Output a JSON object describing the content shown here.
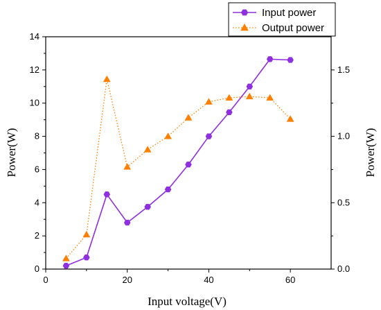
{
  "chart_data": {
    "type": "line",
    "xlabel": "Input voltage(V)",
    "ylabel_left": "Power(W)",
    "ylabel_right": "Power(W)",
    "xlim": [
      0,
      70
    ],
    "ylim_left": [
      0,
      14
    ],
    "ylim_right": [
      0,
      1.75
    ],
    "x_ticks": [
      "0",
      "20",
      "40",
      "60"
    ],
    "y_left_ticks": [
      "0",
      "2",
      "4",
      "6",
      "8",
      "10",
      "12",
      "14"
    ],
    "y_right_ticks": [
      "0.0",
      "0.5",
      "1.0",
      "1.5"
    ],
    "series": [
      {
        "name": "Input power",
        "axis": "left",
        "color": "#8e2fe0",
        "marker": "hexagon",
        "line_style": "solid",
        "x": [
          5,
          10,
          15,
          20,
          25,
          30,
          35,
          40,
          45,
          50,
          55,
          60
        ],
        "y": [
          0.2,
          0.7,
          4.5,
          2.8,
          3.75,
          4.8,
          6.3,
          8.0,
          9.45,
          11.0,
          12.65,
          12.6
        ]
      },
      {
        "name": "Output power",
        "axis": "right",
        "color": "#ff7f00",
        "marker": "triangle",
        "line_style": "dotted",
        "x": [
          5,
          10,
          15,
          20,
          25,
          30,
          35,
          40,
          45,
          50,
          55,
          60
        ],
        "y": [
          0.08,
          0.26,
          1.43,
          0.77,
          0.9,
          1.0,
          1.14,
          1.26,
          1.29,
          1.3,
          1.29,
          1.13
        ]
      }
    ],
    "legend_position": "top-right",
    "grid": false
  }
}
